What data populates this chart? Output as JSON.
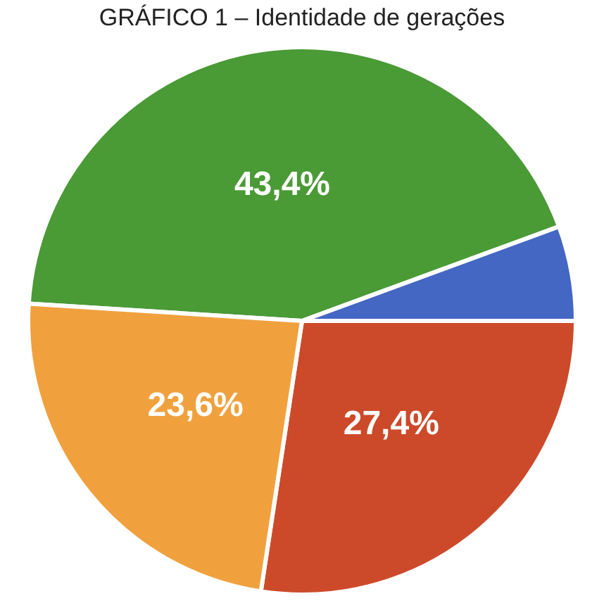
{
  "chart_data": {
    "type": "pie",
    "title": "GRÁFICO 1 – Identidade de gerações",
    "categories": [
      null,
      null,
      null,
      null
    ],
    "values": [
      43.4,
      5.6,
      27.4,
      23.6
    ],
    "colors": [
      "#4a9a36",
      "#4467c4",
      "#cc4a2a",
      "#f0a13e"
    ],
    "value_labels": [
      "43,4%",
      null,
      "27,4%",
      "23,6%"
    ],
    "legend": false
  }
}
